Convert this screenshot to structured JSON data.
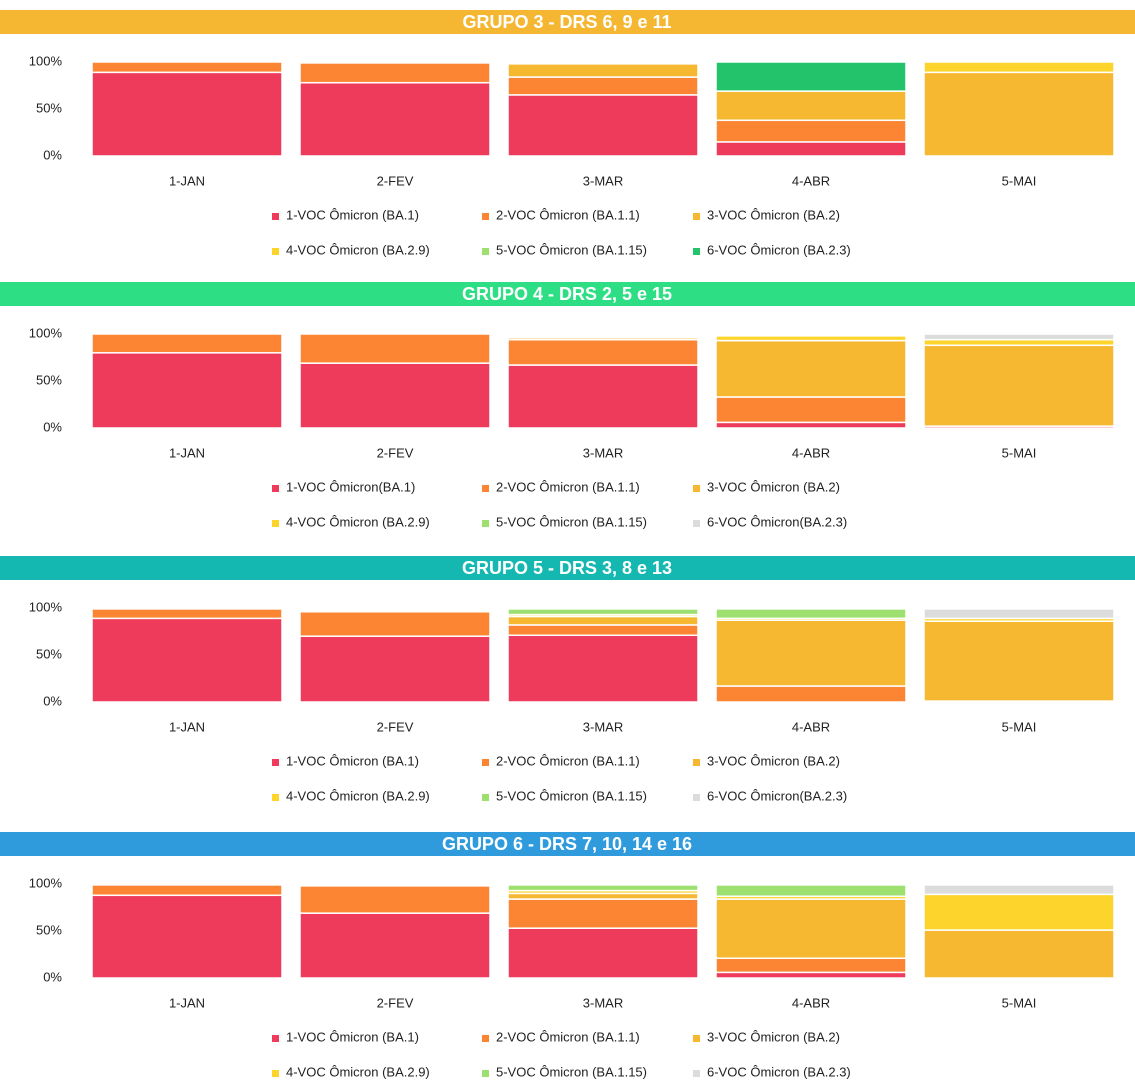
{
  "chart_data": [
    {
      "type": "stacked_bar",
      "title": "GRUPO 3 - DRS 6, 9 e 11",
      "title_color": "#f5b731",
      "categories": [
        "1-JAN",
        "2-FEV",
        "3-MAR",
        "4-ABR",
        "5-MAI"
      ],
      "ylim": [
        0,
        100
      ],
      "yticks": [
        {
          "value": 0,
          "label": "0%"
        },
        {
          "value": 50,
          "label": "50%"
        },
        {
          "value": 100,
          "label": "100%"
        }
      ],
      "grid": false,
      "series": [
        {
          "name": "1-VOC Ômicron (BA.1)",
          "color": "#ee3b5b",
          "values": [
            89,
            78,
            65,
            15,
            0
          ]
        },
        {
          "name": "2-VOC Ômicron (BA.1.1)",
          "color": "#fb8532",
          "values": [
            11,
            21,
            19,
            23,
            0
          ]
        },
        {
          "name": "3-VOC Ômicron (BA.2)",
          "color": "#f6b731",
          "values": [
            0,
            0,
            14,
            31,
            89
          ]
        },
        {
          "name": "4-VOC Ômicron (BA.2.9)",
          "color": "#fdd42c",
          "values": [
            0,
            0,
            0,
            0,
            11
          ]
        },
        {
          "name": "5-VOC Ômicron (BA.1.15)",
          "color": "#9de06f",
          "values": [
            0,
            0,
            0,
            0,
            0
          ]
        },
        {
          "name": "6-VOC Ômicron (BA.2.3)",
          "color": "#22c36a",
          "values": [
            0,
            0,
            0,
            31,
            0
          ]
        }
      ]
    },
    {
      "type": "stacked_bar",
      "title": "GRUPO 4 - DRS 2, 5 e 15",
      "title_color": "#2ede84",
      "categories": [
        "1-JAN",
        "2-FEV",
        "3-MAR",
        "4-ABR",
        "5-MAI"
      ],
      "ylim": [
        0,
        100
      ],
      "yticks": [
        {
          "value": 0,
          "label": "0%"
        },
        {
          "value": 50,
          "label": "50%"
        },
        {
          "value": 100,
          "label": "100%"
        }
      ],
      "grid": false,
      "series": [
        {
          "name": "1-VOC Ômicron(BA.1)",
          "color": "#ee3b5b",
          "values": [
            80,
            69,
            67,
            6,
            2
          ]
        },
        {
          "name": "2-VOC Ômicron (BA.1.1)",
          "color": "#fb8532",
          "values": [
            20,
            31,
            27,
            27,
            0
          ]
        },
        {
          "name": "3-VOC Ômicron (BA.2)",
          "color": "#f6b731",
          "values": [
            0,
            0,
            2,
            60,
            86
          ]
        },
        {
          "name": "4-VOC Ômicron (BA.2.9)",
          "color": "#fdd42c",
          "values": [
            0,
            0,
            1,
            5,
            6
          ]
        },
        {
          "name": "5-VOC Ômicron (BA.1.15)",
          "color": "#9de06f",
          "values": [
            0,
            0,
            0,
            0,
            0
          ]
        },
        {
          "name": "6-VOC Ômicron(BA.2.3)",
          "color": "#dcdcdc",
          "values": [
            0,
            0,
            0,
            0,
            6
          ]
        }
      ]
    },
    {
      "type": "stacked_bar",
      "title": "GRUPO 5 - DRS 3, 8 e 13",
      "title_color": "#14b8b0",
      "categories": [
        "1-JAN",
        "2-FEV",
        "3-MAR",
        "4-ABR",
        "5-MAI"
      ],
      "ylim": [
        0,
        100
      ],
      "yticks": [
        {
          "value": 0,
          "label": "0%"
        },
        {
          "value": 50,
          "label": "50%"
        },
        {
          "value": 100,
          "label": "100%"
        }
      ],
      "grid": false,
      "series": [
        {
          "name": "1-VOC Ômicron (BA.1)",
          "color": "#ee3b5b",
          "values": [
            89,
            70,
            71,
            0,
            1
          ]
        },
        {
          "name": "2-VOC Ômicron (BA.1.1)",
          "color": "#fb8532",
          "values": [
            10,
            26,
            11,
            17,
            0
          ]
        },
        {
          "name": "3-VOC Ômicron (BA.2)",
          "color": "#f6b731",
          "values": [
            0,
            1,
            9,
            70,
            85
          ]
        },
        {
          "name": "4-VOC Ômicron (BA.2.9)",
          "color": "#fdd42c",
          "values": [
            0,
            0,
            2,
            2,
            3
          ]
        },
        {
          "name": "5-VOC Ômicron (BA.1.15)",
          "color": "#9de06f",
          "values": [
            0,
            0,
            6,
            10,
            0
          ]
        },
        {
          "name": "6-VOC Ômicron(BA.2.3)",
          "color": "#dcdcdc",
          "values": [
            0,
            0,
            0,
            0,
            10
          ]
        }
      ]
    },
    {
      "type": "stacked_bar",
      "title": "GRUPO 6 - DRS 7, 10, 14 e 16",
      "title_color": "#2f9bdc",
      "categories": [
        "1-JAN",
        "2-FEV",
        "3-MAR",
        "4-ABR",
        "5-MAI"
      ],
      "ylim": [
        0,
        100
      ],
      "yticks": [
        {
          "value": 0,
          "label": "0%"
        },
        {
          "value": 50,
          "label": "50%"
        },
        {
          "value": 100,
          "label": "100%"
        }
      ],
      "grid": false,
      "series": [
        {
          "name": "1-VOC Ômicron (BA.1)",
          "color": "#ee3b5b",
          "values": [
            88,
            69,
            53,
            6,
            0
          ]
        },
        {
          "name": "2-VOC Ômicron (BA.1.1)",
          "color": "#fb8532",
          "values": [
            11,
            29,
            31,
            15,
            0
          ]
        },
        {
          "name": "3-VOC Ômicron (BA.2)",
          "color": "#f6b731",
          "values": [
            0,
            0,
            6,
            63,
            51
          ]
        },
        {
          "name": "4-VOC Ômicron (BA.2.9)",
          "color": "#fdd42c",
          "values": [
            0,
            0,
            3,
            3,
            38
          ]
        },
        {
          "name": "5-VOC Ômicron (BA.1.15)",
          "color": "#9de06f",
          "values": [
            0,
            0,
            6,
            12,
            0
          ]
        },
        {
          "name": "6-VOC Ômicron (BA.2.3)",
          "color": "#dcdcdc",
          "values": [
            0,
            0,
            0,
            0,
            10
          ]
        }
      ]
    }
  ]
}
